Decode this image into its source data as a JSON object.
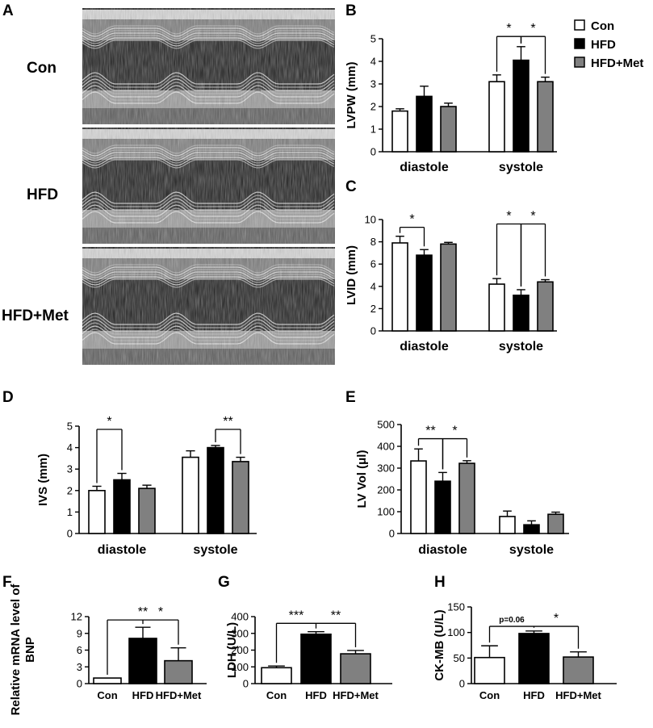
{
  "panels_letters": {
    "A": "A",
    "B": "B",
    "C": "C",
    "D": "D",
    "E": "E",
    "F": "F",
    "G": "G",
    "H": "H"
  },
  "echo": {
    "rows": [
      "Con",
      "HFD",
      "HFD+Met"
    ]
  },
  "legend": {
    "items": [
      {
        "label": "Con",
        "color": "#ffffff"
      },
      {
        "label": "HFD",
        "color": "#000000"
      },
      {
        "label": "HFD+Met",
        "color": "#808080"
      }
    ]
  },
  "colors": {
    "con": "#ffffff",
    "hfd": "#000000",
    "met": "#808080"
  },
  "chart_data": [
    {
      "panel": "B",
      "type": "bar",
      "ylabel": "LVPW (mm)",
      "ylim": [
        0,
        5
      ],
      "yticks": [
        0,
        1,
        2,
        3,
        4,
        5
      ],
      "categories": [
        "diastole",
        "systole"
      ],
      "series": [
        {
          "name": "Con",
          "values": [
            1.8,
            3.1
          ],
          "errors": [
            0.1,
            0.3
          ]
        },
        {
          "name": "HFD",
          "values": [
            2.45,
            4.05
          ],
          "errors": [
            0.45,
            0.6
          ]
        },
        {
          "name": "HFD+Met",
          "values": [
            2.0,
            3.1
          ],
          "errors": [
            0.15,
            0.2
          ]
        }
      ],
      "annotations": [
        {
          "cat": 1,
          "from": 0,
          "to": 1,
          "y": 5.1,
          "label": "*"
        },
        {
          "cat": 1,
          "from": 1,
          "to": 2,
          "y": 5.1,
          "label": "*"
        }
      ]
    },
    {
      "panel": "C",
      "type": "bar",
      "ylabel": "LVID (mm)",
      "ylim": [
        0,
        10
      ],
      "yticks": [
        0,
        2,
        4,
        6,
        8,
        10
      ],
      "categories": [
        "diastole",
        "systole"
      ],
      "series": [
        {
          "name": "Con",
          "values": [
            7.9,
            4.2
          ],
          "errors": [
            0.6,
            0.5
          ]
        },
        {
          "name": "HFD",
          "values": [
            6.8,
            3.2
          ],
          "errors": [
            0.5,
            0.5
          ]
        },
        {
          "name": "HFD+Met",
          "values": [
            7.8,
            4.4
          ],
          "errors": [
            0.15,
            0.2
          ]
        }
      ],
      "annotations": [
        {
          "cat": 0,
          "from": 0,
          "to": 1,
          "y": 9.3,
          "label": "*"
        },
        {
          "cat": 1,
          "from": 0,
          "to": 1,
          "y": 9.6,
          "label": "*",
          "shared": true
        },
        {
          "cat": 1,
          "from": 1,
          "to": 2,
          "y": 9.6,
          "label": "*",
          "shared": true
        }
      ]
    },
    {
      "panel": "D",
      "type": "bar",
      "ylabel": "IVS (mm)",
      "ylim": [
        0,
        5
      ],
      "yticks": [
        0,
        1,
        2,
        3,
        4,
        5
      ],
      "categories": [
        "diastole",
        "systole"
      ],
      "series": [
        {
          "name": "Con",
          "values": [
            2.0,
            3.55
          ],
          "errors": [
            0.2,
            0.3
          ]
        },
        {
          "name": "HFD",
          "values": [
            2.5,
            4.0
          ],
          "errors": [
            0.3,
            0.1
          ]
        },
        {
          "name": "HFD+Met",
          "values": [
            2.1,
            3.35
          ],
          "errors": [
            0.15,
            0.2
          ]
        }
      ],
      "annotations": [
        {
          "cat": 0,
          "from": 0,
          "to": 1,
          "y": 4.85,
          "label": "*"
        },
        {
          "cat": 1,
          "from": 1,
          "to": 2,
          "y": 4.85,
          "label": "**"
        }
      ]
    },
    {
      "panel": "E",
      "type": "bar",
      "ylabel": "LV Vol (μl)",
      "ylim": [
        0,
        500
      ],
      "yticks": [
        0,
        100,
        200,
        300,
        400,
        500
      ],
      "categories": [
        "diastole",
        "systole"
      ],
      "series": [
        {
          "name": "Con",
          "values": [
            333,
            78
          ],
          "errors": [
            55,
            25
          ]
        },
        {
          "name": "HFD",
          "values": [
            240,
            40
          ],
          "errors": [
            40,
            18
          ]
        },
        {
          "name": "HFD+Met",
          "values": [
            322,
            88
          ],
          "errors": [
            12,
            10
          ]
        }
      ],
      "annotations": [
        {
          "cat": 0,
          "from": 0,
          "to": 1,
          "y": 435,
          "label": "**"
        },
        {
          "cat": 0,
          "from": 1,
          "to": 2,
          "y": 435,
          "label": "*"
        }
      ]
    },
    {
      "panel": "F",
      "type": "bar",
      "ylabel": "Relative mRNA level of BNP",
      "ylim": [
        0,
        12
      ],
      "yticks": [
        0,
        3,
        6,
        9,
        12
      ],
      "categories": [
        "Con",
        "HFD",
        "HFD+Met"
      ],
      "values": [
        1.0,
        8.1,
        4.1
      ],
      "errors": [
        0.0,
        2.0,
        2.3
      ],
      "annotations": [
        {
          "from": 0,
          "to": 2,
          "y": 11.4,
          "label": "**",
          "labelAt": 1,
          "shared": true
        },
        {
          "from": 1,
          "to": 2,
          "y": 11.4,
          "label": "*",
          "labelAt": 1.5,
          "shared": true
        }
      ]
    },
    {
      "panel": "G",
      "type": "bar",
      "ylabel": "LDH (U/L)",
      "ylim": [
        0,
        400
      ],
      "yticks": [
        0,
        100,
        200,
        300,
        400
      ],
      "categories": [
        "Con",
        "HFD",
        "HFD+Met"
      ],
      "values": [
        95,
        295,
        178
      ],
      "errors": [
        10,
        15,
        20
      ],
      "annotations": [
        {
          "from": 0,
          "to": 2,
          "y": 360,
          "label": "***",
          "labelAt": 0.5,
          "shared": true
        },
        {
          "from": 1,
          "to": 2,
          "y": 360,
          "label": "**",
          "labelAt": 1.5,
          "shared": true
        }
      ]
    },
    {
      "panel": "H",
      "type": "bar",
      "ylabel": "CK-MB (U/L)",
      "ylim": [
        0,
        150
      ],
      "yticks": [
        0,
        50,
        100,
        150
      ],
      "categories": [
        "Con",
        "HFD",
        "HFD+Met"
      ],
      "values": [
        51,
        98,
        52
      ],
      "errors": [
        23,
        5,
        10
      ],
      "annotations": [
        {
          "from": 0,
          "to": 2,
          "y": 112,
          "label": "p=0.06",
          "labelAt": 0.5,
          "shared": true,
          "small": true
        },
        {
          "from": 0,
          "to": 2,
          "y": 112,
          "label": "*",
          "labelAt": 1.5,
          "shared": true
        }
      ]
    }
  ]
}
